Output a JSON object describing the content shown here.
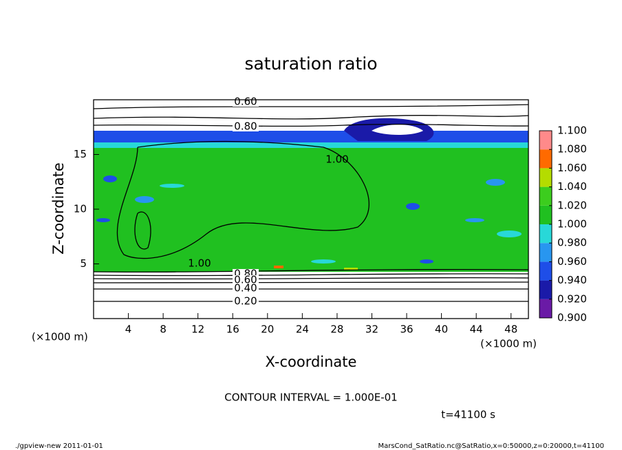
{
  "chart_data": {
    "type": "contour",
    "title": "saturation ratio",
    "x_label": "X-coordinate",
    "y_label": "Z-coordinate",
    "x_unit": "(×1000 m)",
    "y_unit": "(×1000 m)",
    "xlim": [
      0,
      50
    ],
    "xticks": [
      4,
      8,
      12,
      16,
      20,
      24,
      28,
      32,
      36,
      40,
      44,
      48
    ],
    "ylim": [
      0,
      20
    ],
    "yticks": [
      5,
      10,
      15
    ],
    "colorbar": {
      "ticks": [
        {
          "value": 0.9,
          "label": "0.900"
        },
        {
          "value": 0.92,
          "label": "0.920"
        },
        {
          "value": 0.94,
          "label": "0.940"
        },
        {
          "value": 0.96,
          "label": "0.960"
        },
        {
          "value": 0.98,
          "label": "0.980"
        },
        {
          "value": 1.0,
          "label": "1.000"
        },
        {
          "value": 1.02,
          "label": "1.020"
        },
        {
          "value": 1.04,
          "label": "1.040"
        },
        {
          "value": 1.06,
          "label": "1.060"
        },
        {
          "value": 1.08,
          "label": "1.080"
        },
        {
          "value": 1.1,
          "label": "1.100"
        }
      ],
      "colors": [
        "#6a1aa6",
        "#1a1aa8",
        "#1e4ee8",
        "#2896f0",
        "#28d8d8",
        "#20c020",
        "#3ccd1e",
        "#b4dc00",
        "#ff6a00",
        "#ff8a8a"
      ]
    },
    "contour_labels": [
      "0.60",
      "0.80",
      "1.00",
      "1.00",
      "0.80",
      "0.60",
      "0.40",
      "0.20"
    ],
    "contour_interval": "CONTOUR INTERVAL = 1.000E-01",
    "time_label": "t=41100 s",
    "footer_left": "./gpview-new   2011-01-01",
    "footer_right": "MarsCond_SatRatio.nc@SatRatio,x=0:50000,z=0:20000,t=41100"
  }
}
